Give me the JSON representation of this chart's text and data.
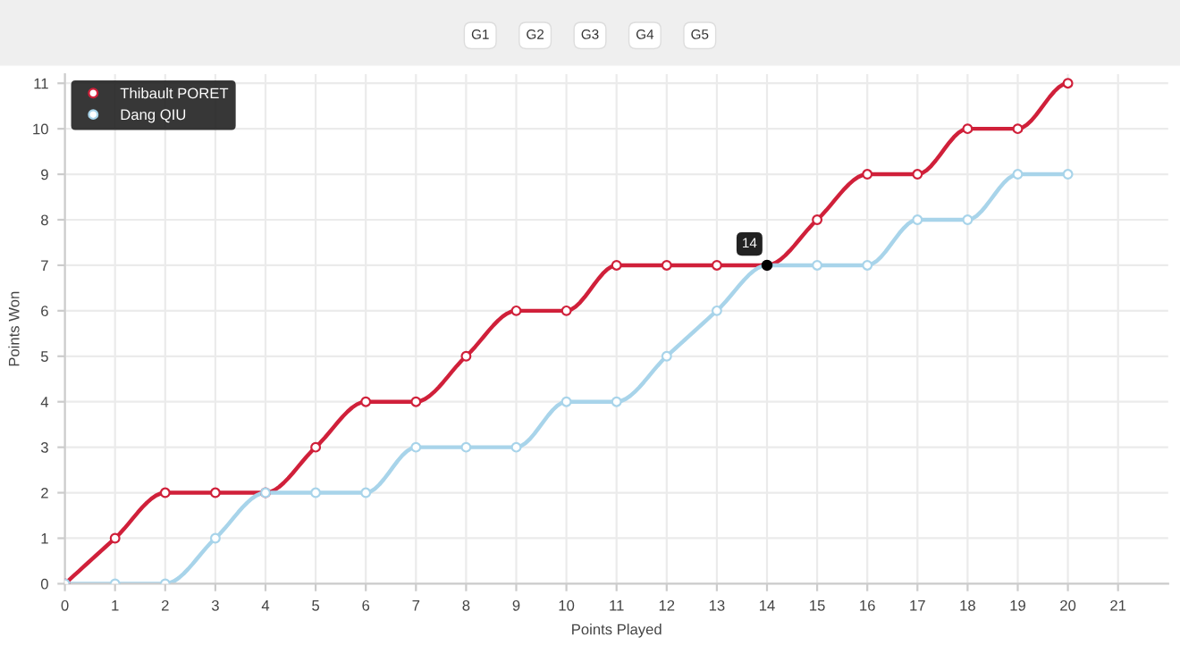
{
  "chart_data": {
    "type": "line",
    "xlabel": "Points Played",
    "ylabel": "Points Won",
    "x": [
      0,
      1,
      2,
      3,
      4,
      5,
      6,
      7,
      8,
      9,
      10,
      11,
      12,
      13,
      14,
      15,
      16,
      17,
      18,
      19,
      20
    ],
    "series": [
      {
        "name": "Thibault PORET",
        "color": "#d0203a",
        "values": [
          0,
          1,
          2,
          2,
          2,
          3,
          4,
          4,
          5,
          6,
          6,
          7,
          7,
          7,
          7,
          8,
          9,
          9,
          10,
          10,
          11
        ]
      },
      {
        "name": "Dang QIU",
        "color": "#a8d4ea",
        "values": [
          0,
          0,
          0,
          1,
          2,
          2,
          2,
          3,
          3,
          3,
          4,
          4,
          5,
          6,
          7,
          7,
          7,
          8,
          8,
          9,
          9
        ]
      }
    ],
    "xlim": [
      0,
      22
    ],
    "xticks": [
      0,
      1,
      2,
      3,
      4,
      5,
      6,
      7,
      8,
      9,
      10,
      11,
      12,
      13,
      14,
      15,
      16,
      17,
      18,
      19,
      20,
      21
    ],
    "ylim": [
      0,
      11.2
    ],
    "yticks": [
      0,
      1,
      2,
      3,
      4,
      5,
      6,
      7,
      8,
      9,
      10,
      11
    ],
    "grid": true,
    "legend": "upper left",
    "marker": "circle",
    "line_style": "solid",
    "annotations": [
      "G1",
      "G2",
      "G3",
      "G4",
      "G5",
      {
        "text": "14",
        "x": 14,
        "y": 7
      }
    ]
  }
}
